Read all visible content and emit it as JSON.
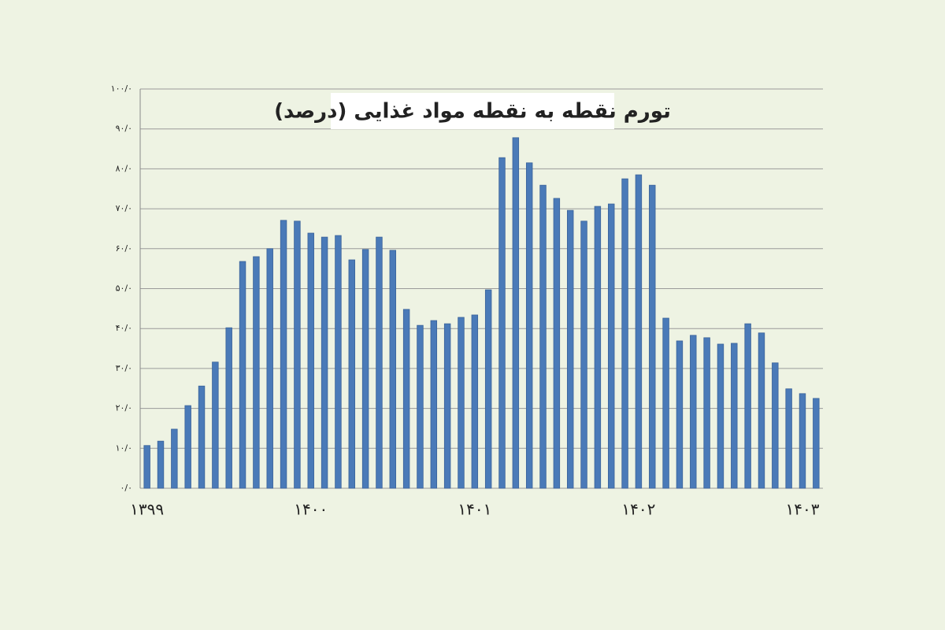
{
  "chart_data": {
    "type": "bar",
    "title": "تورم نقطه به نقطه مواد غذایی (درصد)",
    "categories": [
      "۱۳۹۹",
      null,
      null,
      null,
      null,
      null,
      null,
      null,
      null,
      null,
      null,
      null,
      "۱۴۰۰",
      null,
      null,
      null,
      null,
      null,
      null,
      null,
      null,
      null,
      null,
      null,
      "۱۴۰۱",
      null,
      null,
      null,
      null,
      null,
      null,
      null,
      null,
      null,
      null,
      null,
      "۱۴۰۲",
      null,
      null,
      null,
      null,
      null,
      null,
      null,
      null,
      null,
      null,
      null,
      "۱۴۰۳",
      null
    ],
    "values": [
      10.7,
      11.8,
      14.8,
      20.7,
      25.6,
      31.6,
      40.2,
      56.8,
      58.0,
      60.0,
      67.1,
      66.9,
      63.9,
      62.9,
      63.3,
      57.2,
      59.8,
      62.9,
      59.6,
      44.8,
      40.8,
      42.0,
      41.2,
      42.8,
      43.4,
      49.7,
      82.8,
      87.8,
      81.5,
      75.9,
      72.6,
      69.6,
      66.9,
      70.6,
      71.2,
      77.5,
      78.5,
      75.9,
      42.6,
      36.9,
      38.3,
      37.7,
      36.1,
      36.3,
      41.2,
      38.9,
      31.4,
      24.9,
      23.7,
      22.5
    ],
    "color": "#4a7ab8",
    "ylim": [
      0,
      100
    ],
    "yticks": [
      {
        "value": 0,
        "label": "۰/۰"
      },
      {
        "value": 10,
        "label": "۱۰/۰"
      },
      {
        "value": 20,
        "label": "۲۰/۰"
      },
      {
        "value": 30,
        "label": "۳۰/۰"
      },
      {
        "value": 40,
        "label": "۴۰/۰"
      },
      {
        "value": 50,
        "label": "۵۰/۰"
      },
      {
        "value": 60,
        "label": "۶۰/۰"
      },
      {
        "value": 70,
        "label": "۷۰/۰"
      },
      {
        "value": 80,
        "label": "۸۰/۰"
      },
      {
        "value": 90,
        "label": "۹۰/۰"
      },
      {
        "value": 100,
        "label": "۱۰۰/۰"
      }
    ],
    "grid": true
  }
}
